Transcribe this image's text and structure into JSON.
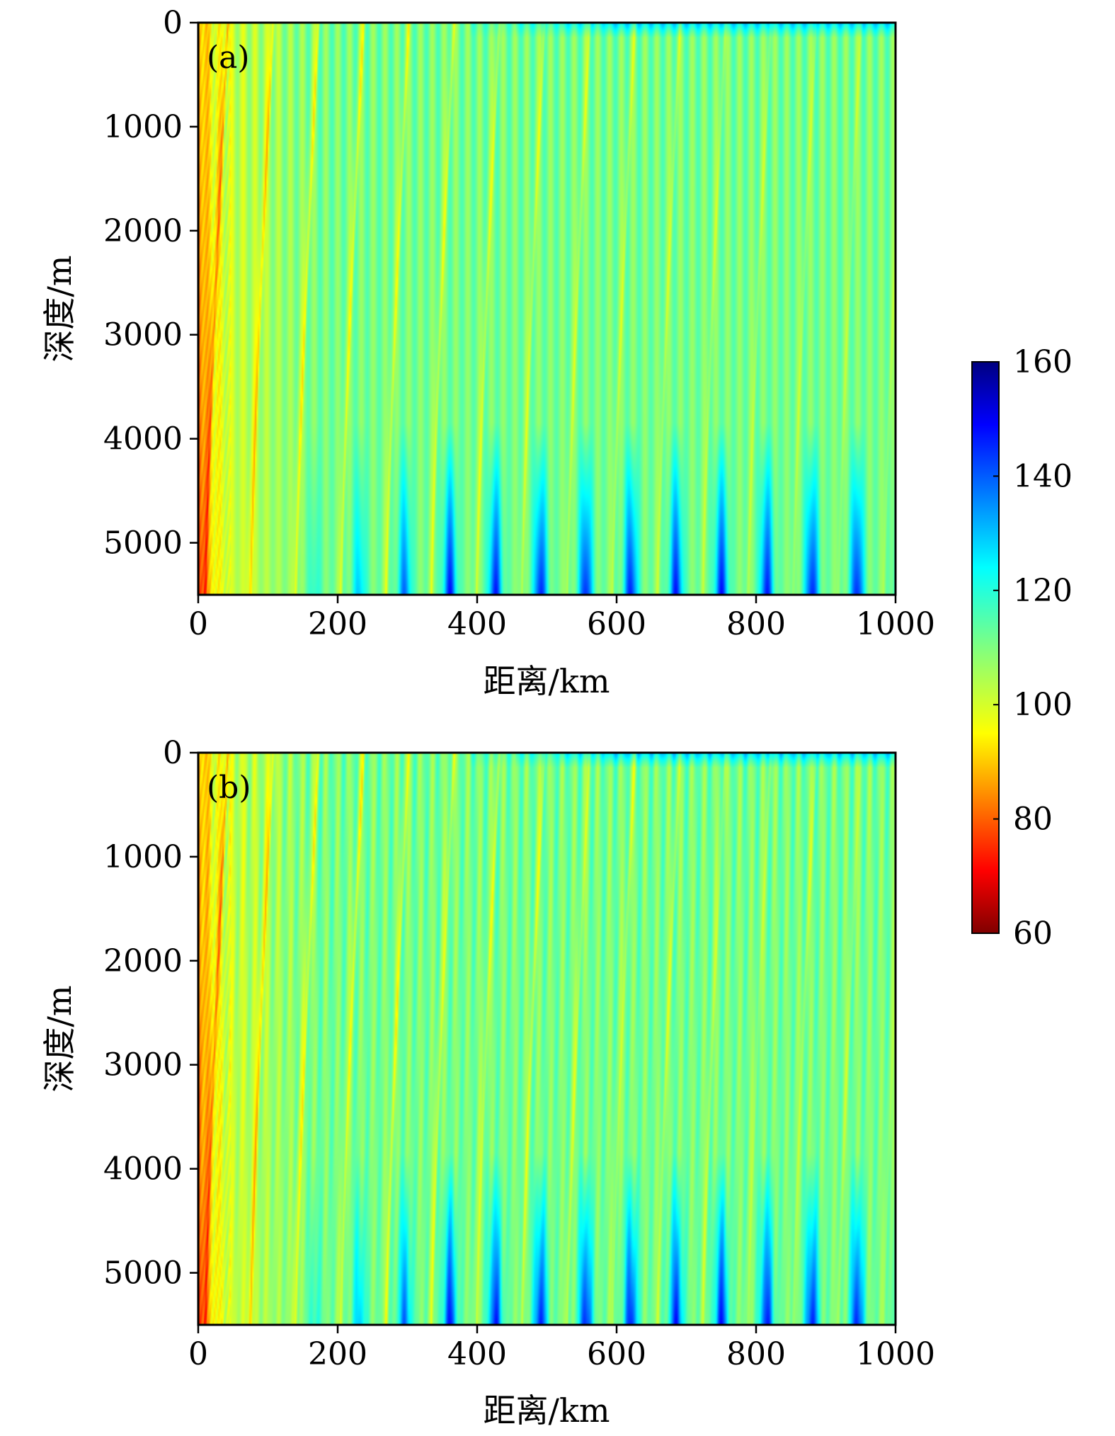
{
  "chart_data": [
    {
      "type": "heatmap",
      "panel_label": "(a)",
      "xlabel": "距离/km",
      "ylabel": "深度/m",
      "xlim": [
        0,
        1000
      ],
      "ylim": [
        0,
        5500
      ],
      "y_inverted": true,
      "x_ticks": [
        "0",
        "200",
        "400",
        "600",
        "800",
        "1000"
      ],
      "y_ticks": [
        "0",
        "1000",
        "2000",
        "3000",
        "4000",
        "5000"
      ],
      "convergence_zone_period_km": 65,
      "value_range": [
        60,
        160
      ],
      "description": "transmission loss field vs range and depth"
    },
    {
      "type": "heatmap",
      "panel_label": "(b)",
      "xlabel": "距离/km",
      "ylabel": "深度/m",
      "xlim": [
        0,
        1000
      ],
      "ylim": [
        0,
        5500
      ],
      "y_inverted": true,
      "x_ticks": [
        "0",
        "200",
        "400",
        "600",
        "800",
        "1000"
      ],
      "y_ticks": [
        "0",
        "1000",
        "2000",
        "3000",
        "4000",
        "5000"
      ],
      "convergence_zone_period_km": 65,
      "value_range": [
        60,
        160
      ],
      "description": "transmission loss field vs range and depth"
    }
  ],
  "colorbar": {
    "min": 60,
    "max": 160,
    "ticks": [
      "60",
      "80",
      "100",
      "120",
      "140",
      "160"
    ],
    "colormap": "jet",
    "reversed": true
  }
}
